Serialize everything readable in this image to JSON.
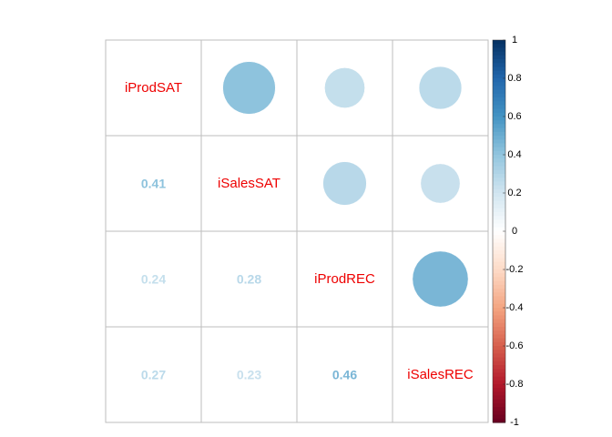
{
  "chart_data": {
    "type": "heatmap",
    "variables": [
      "iProdSAT",
      "iSalesSAT",
      "iProdREC",
      "iSalesREC"
    ],
    "matrix": [
      [
        1.0,
        0.41,
        0.24,
        0.27
      ],
      [
        0.41,
        1.0,
        0.28,
        0.23
      ],
      [
        0.24,
        0.28,
        1.0,
        0.46
      ],
      [
        0.27,
        0.23,
        0.46,
        1.0
      ]
    ],
    "labels": [
      [
        "",
        "",
        "",
        ""
      ],
      [
        "0.41",
        "",
        "",
        ""
      ],
      [
        "0.24",
        "0.28",
        "",
        ""
      ],
      [
        "0.27",
        "0.23",
        "0.46",
        ""
      ]
    ],
    "lower_method": "number",
    "upper_method": "circle",
    "colorbar": {
      "range": [
        -1,
        1
      ],
      "ticks": [
        "1",
        "0.8",
        "0.6",
        "0.4",
        "0.2",
        "0",
        "-0.2",
        "-0.4",
        "-0.6",
        "-0.8",
        "-1"
      ],
      "tick_values": [
        1,
        0.8,
        0.6,
        0.4,
        0.2,
        0,
        -0.2,
        -0.4,
        -0.6,
        -0.8,
        -1
      ]
    },
    "colors": {
      "diag_text": "#ee0000",
      "grid": "#bebebe",
      "scale": [
        "#67001f",
        "#b2182b",
        "#d6604d",
        "#f4a582",
        "#fddbc7",
        "#ffffff",
        "#d1e5f0",
        "#92c5de",
        "#4393c3",
        "#2166ac",
        "#053061"
      ]
    }
  }
}
